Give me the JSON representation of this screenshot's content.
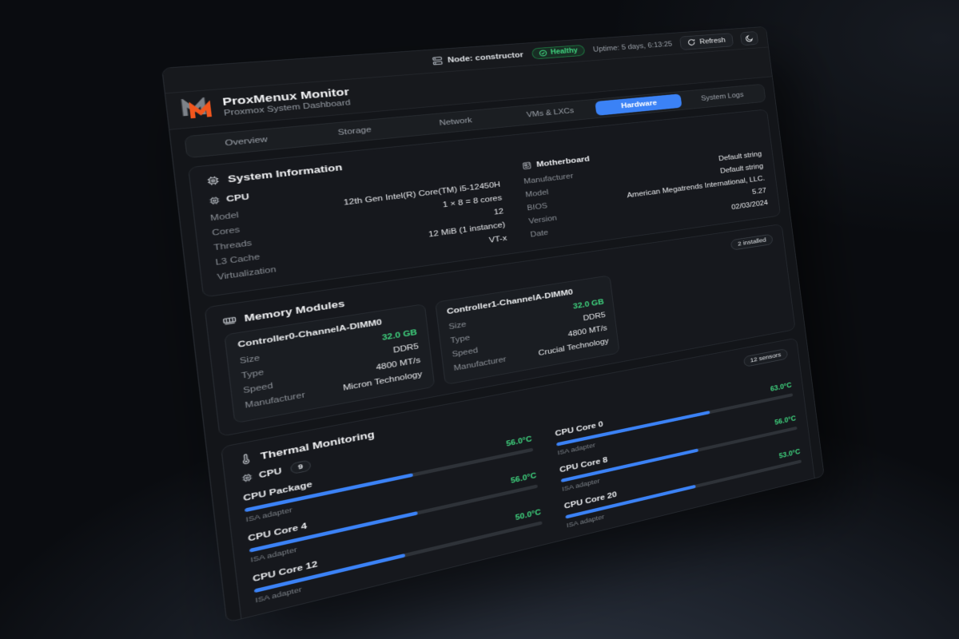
{
  "statusbar": {
    "node_label": "Node: constructor",
    "health_label": "Healthy",
    "uptime_label": "Uptime: 5 days, 6:13:25",
    "refresh_label": "Refresh"
  },
  "header": {
    "title": "ProxMenux Monitor",
    "subtitle": "Proxmox System Dashboard"
  },
  "tabs": [
    {
      "label": "Overview"
    },
    {
      "label": "Storage"
    },
    {
      "label": "Network"
    },
    {
      "label": "VMs & LXCs"
    },
    {
      "label": "Hardware"
    },
    {
      "label": "System Logs"
    }
  ],
  "system_info": {
    "title": "System Information",
    "cpu": {
      "title": "CPU",
      "rows": [
        {
          "label": "Model",
          "value": "12th Gen Intel(R) Core(TM) i5-12450H"
        },
        {
          "label": "Cores",
          "value": "1 × 8 = 8 cores"
        },
        {
          "label": "Threads",
          "value": "12"
        },
        {
          "label": "L3 Cache",
          "value": "12 MiB (1 instance)"
        },
        {
          "label": "Virtualization",
          "value": "VT-x"
        }
      ]
    },
    "motherboard": {
      "title": "Motherboard",
      "rows": [
        {
          "label": "Manufacturer",
          "value": "Default string"
        },
        {
          "label": "Model",
          "value": "Default string"
        },
        {
          "label": "BIOS",
          "value": "American Megatrends International, LLC."
        },
        {
          "label": "Version",
          "value": "5.27"
        },
        {
          "label": "Date",
          "value": "02/03/2024"
        }
      ]
    }
  },
  "memory": {
    "title": "Memory Modules",
    "badge": "2 installed",
    "modules": [
      {
        "name": "Controller0-ChannelA-DIMM0",
        "rows": [
          {
            "label": "Size",
            "value": "32.0 GB"
          },
          {
            "label": "Type",
            "value": "DDR5"
          },
          {
            "label": "Speed",
            "value": "4800 MT/s"
          },
          {
            "label": "Manufacturer",
            "value": "Micron Technology"
          }
        ]
      },
      {
        "name": "Controller1-ChannelA-DIMM0",
        "rows": [
          {
            "label": "Size",
            "value": "32.0 GB"
          },
          {
            "label": "Type",
            "value": "DDR5"
          },
          {
            "label": "Speed",
            "value": "4800 MT/s"
          },
          {
            "label": "Manufacturer",
            "value": "Crucial Technology"
          }
        ]
      }
    ]
  },
  "thermal": {
    "title": "Thermal Monitoring",
    "badge": "12 sensors",
    "group_label": "CPU",
    "group_count": "9",
    "sensors": [
      {
        "name": "CPU Package",
        "temp": "56.0°C",
        "percent": 56,
        "adapter": "ISA adapter"
      },
      {
        "name": "CPU Core 0",
        "temp": "63.0°C",
        "percent": 63,
        "adapter": "ISA adapter"
      },
      {
        "name": "CPU Core 4",
        "temp": "56.0°C",
        "percent": 56,
        "adapter": "ISA adapter"
      },
      {
        "name": "CPU Core 8",
        "temp": "56.0°C",
        "percent": 56,
        "adapter": "ISA adapter"
      },
      {
        "name": "CPU Core 12",
        "temp": "50.0°C",
        "percent": 50,
        "adapter": "ISA adapter"
      },
      {
        "name": "CPU Core 20",
        "temp": "53.0°C",
        "percent": 53,
        "adapter": "ISA adapter"
      }
    ]
  },
  "colors": {
    "accent_blue": "#3b82f6",
    "accent_green": "#3fd37e",
    "logo_orange": "#f2561d",
    "logo_gray": "#7d8289"
  }
}
